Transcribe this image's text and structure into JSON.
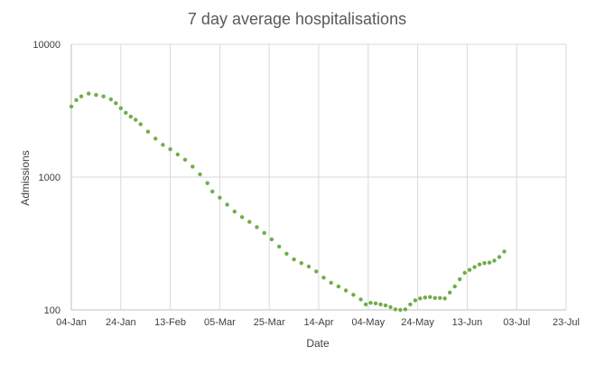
{
  "chart_data": {
    "type": "scatter",
    "title": "7 day average hospitalisations",
    "xlabel": "Date",
    "ylabel": "Admissions",
    "y_scale": "log",
    "ylim": [
      100,
      10000
    ],
    "yticks": [
      "100",
      "1000",
      "10000"
    ],
    "xlim": [
      "04-Jan",
      "23-Jul"
    ],
    "xticks": [
      "04-Jan",
      "24-Jan",
      "13-Feb",
      "05-Mar",
      "25-Mar",
      "14-Apr",
      "04-May",
      "24-May",
      "13-Jun",
      "03-Jul",
      "23-Jul"
    ],
    "grid": true,
    "legend": "none",
    "marker_color": "#70ad47",
    "series": [
      {
        "x": [
          "04-Jan",
          "06-Jan",
          "08-Jan",
          "11-Jan",
          "14-Jan",
          "17-Jan",
          "20-Jan",
          "22-Jan",
          "24-Jan",
          "26-Jan",
          "28-Jan",
          "30-Jan",
          "01-Feb",
          "04-Feb",
          "07-Feb",
          "10-Feb",
          "13-Feb",
          "16-Feb",
          "19-Feb",
          "22-Feb",
          "25-Feb",
          "28-Feb",
          "02-Mar",
          "05-Mar",
          "08-Mar",
          "11-Mar",
          "14-Mar",
          "17-Mar",
          "20-Mar",
          "23-Mar",
          "26-Mar",
          "29-Mar",
          "01-Apr",
          "04-Apr",
          "07-Apr",
          "10-Apr",
          "13-Apr",
          "16-Apr",
          "19-Apr",
          "22-Apr",
          "25-Apr",
          "28-Apr",
          "01-May",
          "03-May",
          "05-May",
          "07-May",
          "09-May",
          "11-May",
          "13-May",
          "15-May",
          "17-May",
          "19-May",
          "21-May",
          "23-May",
          "25-May",
          "27-May",
          "29-May",
          "31-May",
          "02-Jun",
          "04-Jun",
          "06-Jun",
          "08-Jun",
          "10-Jun",
          "12-Jun",
          "14-Jun",
          "16-Jun",
          "18-Jun",
          "20-Jun",
          "22-Jun",
          "24-Jun",
          "26-Jun",
          "28-Jun"
        ],
        "y": [
          3400,
          3800,
          4050,
          4250,
          4150,
          4050,
          3850,
          3600,
          3300,
          3050,
          2850,
          2700,
          2500,
          2200,
          1950,
          1750,
          1620,
          1480,
          1350,
          1200,
          1050,
          900,
          780,
          700,
          620,
          550,
          500,
          460,
          420,
          380,
          340,
          300,
          265,
          240,
          225,
          212,
          195,
          175,
          160,
          150,
          140,
          130,
          120,
          110,
          113,
          112,
          110,
          108,
          105,
          101,
          100,
          101,
          110,
          118,
          122,
          124,
          125,
          123,
          123,
          122,
          135,
          150,
          170,
          190,
          200,
          210,
          220,
          225,
          227,
          235,
          250,
          275
        ]
      }
    ]
  }
}
